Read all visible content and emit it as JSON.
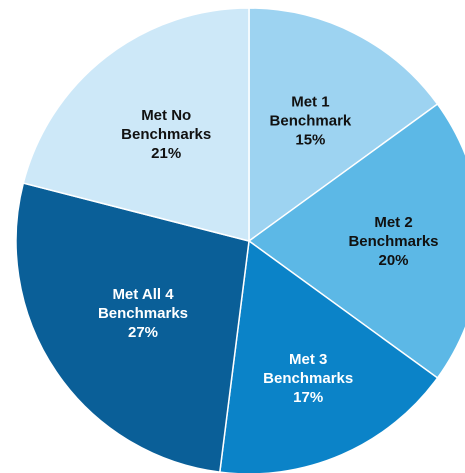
{
  "chart_data": {
    "type": "pie",
    "title": "",
    "start_angle_deg": 0,
    "direction": "clockwise",
    "slices": [
      {
        "lines": [
          "Met 1",
          "Benchmark",
          "15%"
        ],
        "value": 15,
        "color": "#9dd3f1",
        "text_color": "#111111"
      },
      {
        "lines": [
          "Met 2",
          "Benchmarks",
          "20%"
        ],
        "value": 20,
        "color": "#5cb8e6",
        "text_color": "#111111"
      },
      {
        "lines": [
          "Met 3",
          "Benchmarks",
          "17%"
        ],
        "value": 17,
        "color": "#0b83c8",
        "text_color": "#ffffff"
      },
      {
        "lines": [
          "Met All 4",
          "Benchmarks",
          "27%"
        ],
        "value": 27,
        "color": "#0a5f98",
        "text_color": "#ffffff"
      },
      {
        "lines": [
          "Met No",
          "Benchmarks",
          "21%"
        ],
        "value": 21,
        "color": "#cde8f8",
        "text_color": "#111111"
      }
    ]
  }
}
